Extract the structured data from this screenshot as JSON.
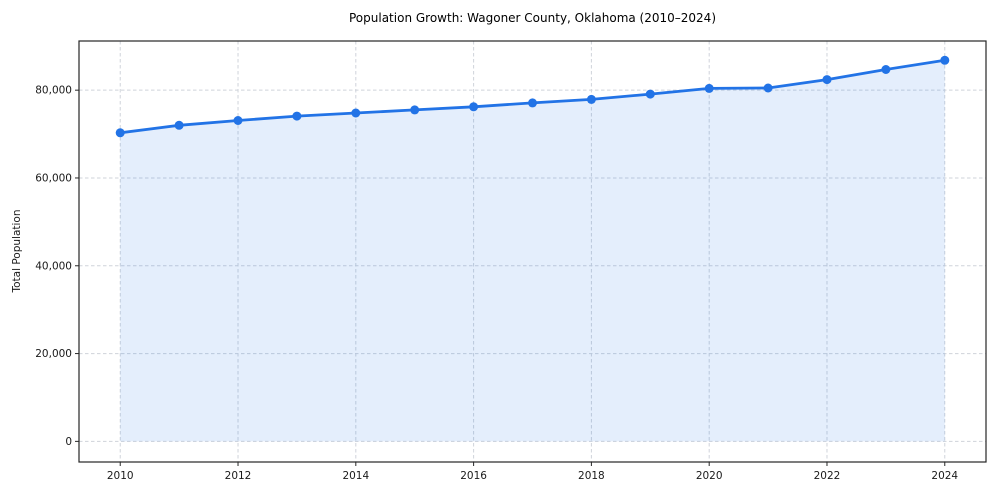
{
  "chart_data": {
    "type": "line",
    "title": "Population Growth: Wagoner County, Oklahoma (2010–2024)",
    "xlabel": "",
    "ylabel": "Total Population",
    "series": [
      {
        "name": "Total Population",
        "x": [
          2010,
          2011,
          2012,
          2013,
          2014,
          2015,
          2016,
          2017,
          2018,
          2019,
          2020,
          2021,
          2022,
          2023,
          2024
        ],
        "values": [
          70300,
          72000,
          73100,
          74100,
          74800,
          75500,
          76200,
          77100,
          77900,
          79100,
          80400,
          80500,
          82400,
          84700,
          86800
        ]
      }
    ],
    "area_fill": true,
    "markers": true,
    "grid": true,
    "legend_position": "none",
    "xlim": [
      2009.3,
      2024.7
    ],
    "ylim": [
      -4700,
      91200
    ],
    "xticks": {
      "values": [
        2010,
        2012,
        2014,
        2016,
        2018,
        2020,
        2022,
        2024
      ],
      "labels": [
        "2010",
        "2012",
        "2014",
        "2016",
        "2018",
        "2020",
        "2022",
        "2024"
      ]
    },
    "yticks": {
      "values": [
        0,
        20000,
        40000,
        60000,
        80000
      ],
      "labels": [
        "0",
        "20,000",
        "40,000",
        "60,000",
        "80,000"
      ]
    },
    "colors": {
      "line": "#2273e6",
      "fill": "#2273e6",
      "fill_opacity": 0.12,
      "grid": "#cfd3da",
      "axis": "#262626",
      "text": "#1a1a1a",
      "background": "#ffffff"
    }
  }
}
